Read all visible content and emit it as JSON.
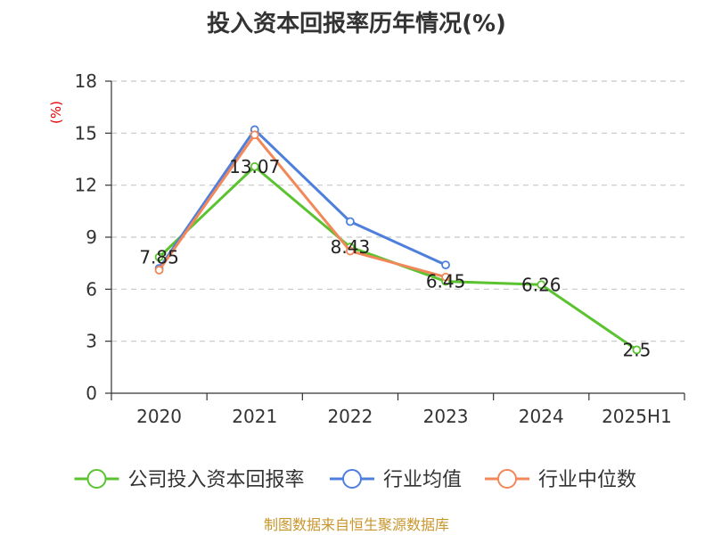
{
  "chart_data": {
    "type": "line",
    "title": "投入资本回报率历年情况(%)",
    "unit_label": "(%)",
    "categories": [
      "2020",
      "2021",
      "2022",
      "2023",
      "2024",
      "2025H1"
    ],
    "ylim": [
      0,
      18
    ],
    "yticks": [
      0,
      3,
      6,
      9,
      12,
      15,
      18
    ],
    "grid": true,
    "legend_position": "bottom",
    "series": [
      {
        "name": "公司投入资本回报率",
        "color": "#5ac32f",
        "values": [
          7.85,
          13.07,
          8.43,
          6.45,
          6.26,
          2.5
        ],
        "labels": [
          "7.85",
          "13.07",
          "8.43",
          "6.45",
          "6.26",
          "2.5"
        ]
      },
      {
        "name": "行业均值",
        "color": "#4f7fdc",
        "values": [
          7.2,
          15.2,
          9.9,
          7.4,
          null,
          null
        ]
      },
      {
        "name": "行业中位数",
        "color": "#f2875a",
        "values": [
          7.1,
          14.9,
          8.2,
          6.7,
          null,
          null
        ]
      }
    ],
    "source": "制图数据来自恒生聚源数据库"
  }
}
